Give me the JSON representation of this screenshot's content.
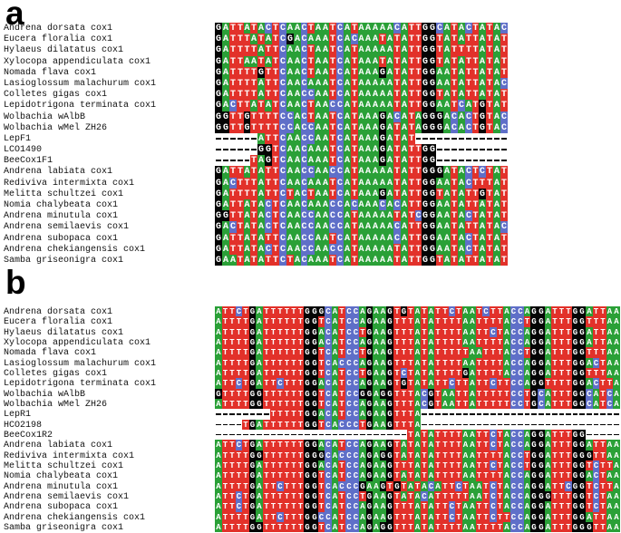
{
  "figure": {
    "title": "Multiple sequence alignment of bee cox1 sequences, Wolbachia sequences and barcoding primers",
    "base_colors": {
      "A": "#2aa037",
      "T": "#e2312a",
      "C": "#5f6fc8",
      "G": "#050505"
    },
    "letter_color": "#ffffff",
    "gap_dash_color": "#000000",
    "panels": [
      {
        "label": "a",
        "rows": [
          {
            "name": "Andrena dorsata cox1",
            "seq": "GATTATACTCAACTAATCATAAAAACATTGGCATACTATAC"
          },
          {
            "name": "Eucera floralia cox1",
            "seq": "GATTTATATCGACAAATCACAAATATATTGGTATATTATAT"
          },
          {
            "name": "Hylaeus dilatatus cox1",
            "seq": "GATTTTATTCAACTAATCATAAAAATATTGGTATTTTATAT"
          },
          {
            "name": "Xylocopa appendiculata cox1",
            "seq": "GATTAATATCAACTAATCATAAATATATTGGTATATTATAT"
          },
          {
            "name": "Nomada flava cox1",
            "seq": "GATTTTGTTCAACTAATCATAAAGATATTGGAATATTATAT"
          },
          {
            "name": "Lasioglossum malachurum cox1",
            "seq": "GATTTTATTCAACAAATCATAAAAATATTGGAATATTATAC"
          },
          {
            "name": "Colletes gigas cox1",
            "seq": "GATTTTATTCAACCAATCATAAAAATATTGGTATATTATAT"
          },
          {
            "name": "Lepidotrigona terminata cox1",
            "seq": "GACTTATATCAACTAACCATAAAAATATTGGAATCATGTAT"
          },
          {
            "name": "Wolbachia wAlbB",
            "seq": "GGTTGTTTTCCACTAATCATAAAGACATAGGGACACTGTAC"
          },
          {
            "name": "Wolbachia wMel ZH26",
            "seq": "GGTTGTTTTCCACCAATCATAAAGATATAGGGACACTGTAC"
          },
          {
            "name": "LepF1",
            "seq": "------ATTCAACCAATCATAAAGATAT-------------"
          },
          {
            "name": "LCO1490",
            "seq": "------GGTCAACAAATCATAAAGATATTGG----------"
          },
          {
            "name": "BeeCox1F1",
            "seq": "-----TAGTCAACAAATCATAAAGATATTGG----------"
          },
          {
            "name": "Andrena labiata cox1",
            "seq": "GATTATATTCAACCAACCATAAAAATATTGGGATACTCTAT"
          },
          {
            "name": "Rediviva intermixta cox1",
            "seq": "GACTTTATTCAACAAATCATAAAAATATTGGAATACTTTAT"
          },
          {
            "name": "Melitta schultzei cox1",
            "seq": "GATTTTATTCTACTAATCATAAAGATATTGGTATATTGTAT"
          },
          {
            "name": "Nomia chalybeata cox1",
            "seq": "GATTATACTCAACAAACCACAAACACATTGGAATATTATAT"
          },
          {
            "name": "Andrena minutula cox1",
            "seq": "GGTTATACTCAACCAACCATAAAAATATCGGAATACTATAT"
          },
          {
            "name": "Andrena semilaevis cox1",
            "seq": "GACTATACTCAACCAACCATAAAAACATTGGAATATTATAC"
          },
          {
            "name": "Andrena subopaca cox1",
            "seq": "GATTATATTCAACCAATCATAAAAACATTGGAATACTATAT"
          },
          {
            "name": "Andrena chekiangensis cox1",
            "seq": "GATTATACTCAACCAACCATAAAAATATTGGAATACTATAT"
          },
          {
            "name": "Samba griseonigra cox1",
            "seq": "GAATATATTCTACAAATCATAAAAATATTGGTATATTATAT"
          }
        ]
      },
      {
        "label": "b",
        "rows": [
          {
            "name": "Andrena dorsata cox1",
            "seq": "ATTCTGATTTTTTGGGCATCCAGAAGTGTATATTCTAATCTTACCAGGATTTGGATTAA"
          },
          {
            "name": "Eucera floralia cox1",
            "seq": "ATTTTGATTTTTTGGTCATCCAGAAGTTTATATTTTAATTTTACCTGGATTTGGTTTAA"
          },
          {
            "name": "Hylaeus dilatatus cox1",
            "seq": "ATTTTGATTTTTTGGACATCCTGAAGTTTATATTTTAATTCTACCAGGATTTGGATTAA"
          },
          {
            "name": "Xylocopa appendiculata cox1",
            "seq": "ATTTTGATTTTTTGGACATCCAGAAGTTTATATTTTAATTTTACCAGGATTTGGATTAA"
          },
          {
            "name": "Nomada flava cox1",
            "seq": "ATTTTGATTTTTTGGTCATCCTGAAGTTTATATTTTTAATTTACCTGGATTTGGTTTAA"
          },
          {
            "name": "Lasioglossum malachurum cox1",
            "seq": "ATTTTGATTTTTTGGTCACCCAGAAGTTTATATTTTAATTTTACCAGGATTTGGACTAA"
          },
          {
            "name": "Colletes gigas cox1",
            "seq": "ATTTTGATTTTTTGGTCATCCTGAAGTCTATATTTTGATTTTACCAGGATTTGGTTTAA"
          },
          {
            "name": "Lepidotrigona terminata cox1",
            "seq": "ATTCTGATTCTTTGGACATCCAGAAGTGTATATTCTTATTCTTCCAGGTTTTGGACTTA"
          },
          {
            "name": "Wolbachia wAlbB",
            "seq": "GTTTTGGTTTTTTGGTCATCCGGAGGTTTACGTAATTATTTTTCCTGCATTTGGCATCA"
          },
          {
            "name": "Wolbachia wMel ZH26",
            "seq": "ATTTTGGTTTTTTGGTCATCCAGAAGTTTACGTAATTATTTTTCCTGCATTTGGCATCA"
          },
          {
            "name": "LepR1",
            "seq": "--------TTTTTGGACATCCAGAAGTTTA-----------------------------"
          },
          {
            "name": "HCO2198",
            "seq": "----TGATTTTTTGGTCACCCTGAAGTTTA-----------------------------"
          },
          {
            "name": "BeeCox1R2",
            "seq": "----------------------------TATATTTTAATTCTACCAGGATTTGG-----"
          },
          {
            "name": "Andrena labiata cox1",
            "seq": "ATTCTGATTTTTTGGACATCCAGAAGTATATATTTTAATTCTACCAGGATTTGGATTAA"
          },
          {
            "name": "Rediviva intermixta cox1",
            "seq": "ATTTTGGTTTTTTGGGCACCCAGAGGTATATATTTTAATTTTACCTGGATTTGGGTTAA"
          },
          {
            "name": "Melitta schultzei cox1",
            "seq": "ATTTTGATTTTTTGGACATCCAGAAGTTTATATTTTAATTCTACCTGGATTTGGTCTTA"
          },
          {
            "name": "Nomia chalybeata cox1",
            "seq": "ATTTTGATTTTTTGGTCATCCAGAAGTATATATTTTAATTTTACCAGGATTTGGACTAA"
          },
          {
            "name": "Andrena minutula cox1",
            "seq": "ATTTTGATTCTTTGGTCACCCGAAGTGTATACATTCTAATCTACCAGGATTCGGTCTTA"
          },
          {
            "name": "Andrena semilaevis cox1",
            "seq": "ATTCTGATTTTTTGGTCATCCTGAAGTATACATTTTTAATCTACCAGGGTTTGGTCTAA"
          },
          {
            "name": "Andrena subopaca cox1",
            "seq": "ATTCTGATTTTTTGGTCATCCAGAAGTTTATATTCTAATTCTACCAGGATTTGGTCTAA"
          },
          {
            "name": "Andrena chekiangensis cox1",
            "seq": "ATTTTGATTCTTTGGCCATCCAGAAGTTTATATTCTAATTCTTCCAGGATTTGGATTAA"
          },
          {
            "name": "Samba griseonigra cox1",
            "seq": "ATTTTGGTTTTTTGGTCATCCAGAGGTTTATATTTTAATTTTACCAGGATTTGGGTTAA"
          }
        ]
      }
    ]
  }
}
